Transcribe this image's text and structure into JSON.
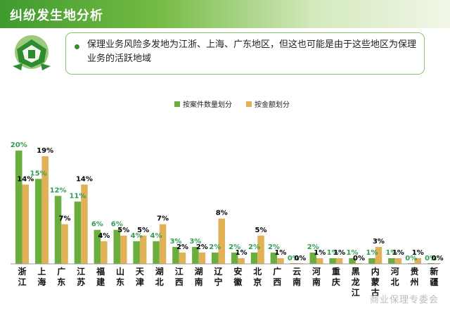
{
  "header": {
    "title": "纠纷发生地分析"
  },
  "callout": {
    "text": "保理业务风险多发地为江浙、上海、广东地区，但这也可能是由于这些地区为保理业务的活跃地域"
  },
  "footer": {
    "watermark": "商业保理专委会"
  },
  "colors": {
    "series1": "#6aae3d",
    "series2": "#e1b157",
    "label1": "#2f9e52",
    "label2": "#000000"
  },
  "chart_data": {
    "type": "bar",
    "categories": [
      "浙江",
      "上海",
      "广东",
      "江苏",
      "福建",
      "山东",
      "天津",
      "湖北",
      "江西",
      "湖南",
      "辽宁",
      "安徽",
      "北京",
      "广西",
      "云南",
      "河南",
      "重庆",
      "黑龙江",
      "内蒙古",
      "河北",
      "贵州",
      "新疆"
    ],
    "series": [
      {
        "name": "按案件数量划分",
        "values": [
          20,
          15,
          12,
          11,
          6,
          6,
          4,
          4,
          3,
          3,
          2,
          2,
          2,
          2,
          0,
          2,
          1,
          1,
          1,
          1,
          0,
          0
        ],
        "labels": [
          "20%",
          "15%",
          "12%",
          "11%",
          "6%",
          "6%",
          "4%",
          "4%",
          "3%",
          "3%",
          "2%",
          "2%",
          "2%",
          "2%",
          "0%",
          "2%",
          "1%",
          "1%",
          "1%",
          "1%",
          "0%",
          "0%"
        ]
      },
      {
        "name": "按金额划分",
        "values": [
          14,
          19,
          7,
          14,
          4,
          5,
          5,
          7,
          2,
          2,
          8,
          1,
          5,
          1,
          0,
          1,
          1,
          0,
          3,
          1,
          1,
          0
        ],
        "labels": [
          "14%",
          "19%",
          "7%",
          "14%",
          "4%",
          "5%",
          "5%",
          "7%",
          "2%",
          "2%",
          "8%",
          "1%",
          "5%",
          "1%",
          "0%",
          "1%",
          "1%",
          "0%",
          "3%",
          "1%",
          "1%",
          "0%"
        ]
      }
    ],
    "legend_position": "top-center",
    "ylim": [
      0,
      20
    ]
  }
}
